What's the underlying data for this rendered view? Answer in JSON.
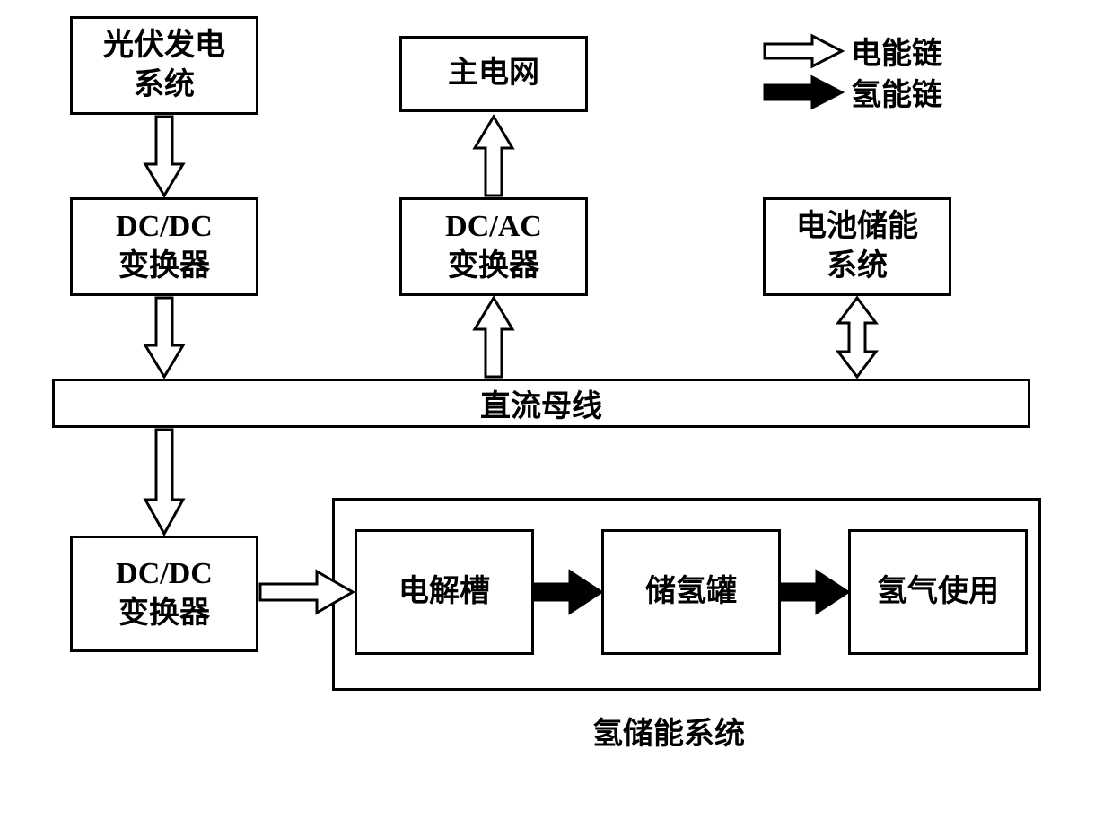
{
  "nodes": {
    "pv": {
      "label": "光伏发电\n系统",
      "fontsize": 34
    },
    "grid": {
      "label": "主电网",
      "fontsize": 34
    },
    "dcdc1": {
      "label": "DC/DC\n变换器",
      "fontsize": 34
    },
    "dcac": {
      "label": "DC/AC\n变换器",
      "fontsize": 34
    },
    "battery": {
      "label": "电池储能\n系统",
      "fontsize": 34
    },
    "bus": {
      "label": "直流母线",
      "fontsize": 34
    },
    "dcdc2": {
      "label": "DC/DC\n变换器",
      "fontsize": 34
    },
    "electrolyzer": {
      "label": "电解槽",
      "fontsize": 34
    },
    "tank": {
      "label": "储氢罐",
      "fontsize": 34
    },
    "usage": {
      "label": "氢气使用",
      "fontsize": 34
    },
    "h2system": {
      "label": "氢储能系统",
      "fontsize": 34
    }
  },
  "legend": {
    "power": "电能链",
    "hydrogen": "氢能链",
    "fontsize": 34
  },
  "colors": {
    "border": "#000000",
    "bg": "#ffffff",
    "arrow_outline": "#000000",
    "arrow_power_fill": "#ffffff",
    "arrow_h2_fill": "#000000",
    "text": "#000000"
  },
  "layout": {
    "box_border_width": 3,
    "arrow_stroke_width": 3
  }
}
